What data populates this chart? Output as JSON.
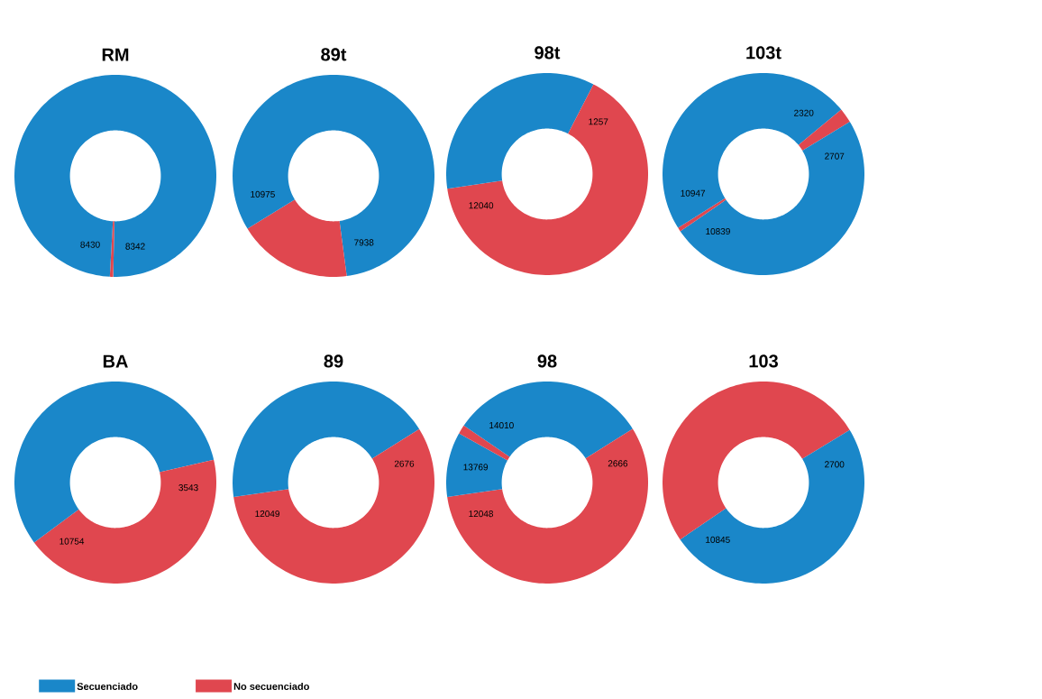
{
  "chart_data": [
    {
      "type": "donut",
      "title": "RM",
      "categories": [
        null,
        null,
        null
      ],
      "values": [
        50.35,
        0.53,
        49.12
      ],
      "colors": [
        "#1a87c9",
        "#e0474f",
        "#1a87c9"
      ],
      "annotations": [
        "8342",
        "8430"
      ]
    },
    {
      "type": "donut",
      "title": "89t",
      "categories": [
        null,
        null,
        null
      ],
      "values": [
        47.91,
        18.33,
        33.76
      ],
      "colors": [
        "#1a87c9",
        "#e0474f",
        "#1a87c9"
      ],
      "annotations": [
        "7938",
        "10975"
      ]
    },
    {
      "type": "donut",
      "title": "98t",
      "categories": [
        null,
        null,
        null
      ],
      "values": [
        7.59,
        65.08,
        27.33
      ],
      "colors": [
        "#1a87c9",
        "#e0474f",
        "#1a87c9"
      ],
      "annotations": [
        "1257",
        "12040"
      ]
    },
    {
      "type": "donut",
      "title": "103t",
      "categories": [
        null,
        null,
        null,
        null,
        null
      ],
      "values": [
        14.0,
        2.34,
        49.08,
        0.65,
        33.93
      ],
      "colors": [
        "#1a87c9",
        "#e0474f",
        "#1a87c9",
        "#e0474f",
        "#1a87c9"
      ],
      "annotations": [
        "2320",
        "2707",
        "10839",
        "10947"
      ]
    },
    {
      "type": "donut",
      "title": "BA",
      "categories": [
        null,
        null,
        null
      ],
      "values": [
        21.38,
        43.52,
        35.1
      ],
      "colors": [
        "#1a87c9",
        "#e0474f",
        "#1a87c9"
      ],
      "annotations": [
        "3543",
        "10754"
      ]
    },
    {
      "type": "donut",
      "title": "89",
      "categories": [
        null,
        null,
        null
      ],
      "values": [
        16.15,
        56.57,
        27.28
      ],
      "colors": [
        "#1a87c9",
        "#e0474f",
        "#1a87c9"
      ],
      "annotations": [
        "2676",
        "12049"
      ]
    },
    {
      "type": "donut",
      "title": "98",
      "categories": [
        null,
        null,
        null,
        null,
        null
      ],
      "values": [
        16.09,
        56.62,
        10.39,
        1.45,
        15.45
      ],
      "colors": [
        "#1a87c9",
        "#e0474f",
        "#1a87c9",
        "#e0474f",
        "#1a87c9"
      ],
      "annotations": [
        "2666",
        "12048",
        "13769",
        "14010"
      ]
    },
    {
      "type": "donut",
      "title": "103",
      "categories": [
        null,
        null,
        null
      ],
      "values": [
        16.3,
        49.16,
        34.54
      ],
      "colors": [
        "#e0474f",
        "#1a87c9",
        "#e0474f"
      ],
      "annotations": [
        "2700",
        "10845"
      ]
    },
    {
      "type": "other",
      "legend": "bottom",
      "series": [
        {
          "name": "Secuenciado",
          "color": "#1a87c9"
        },
        {
          "name": "No secuenciado",
          "color": "#e0474f"
        }
      ]
    }
  ]
}
